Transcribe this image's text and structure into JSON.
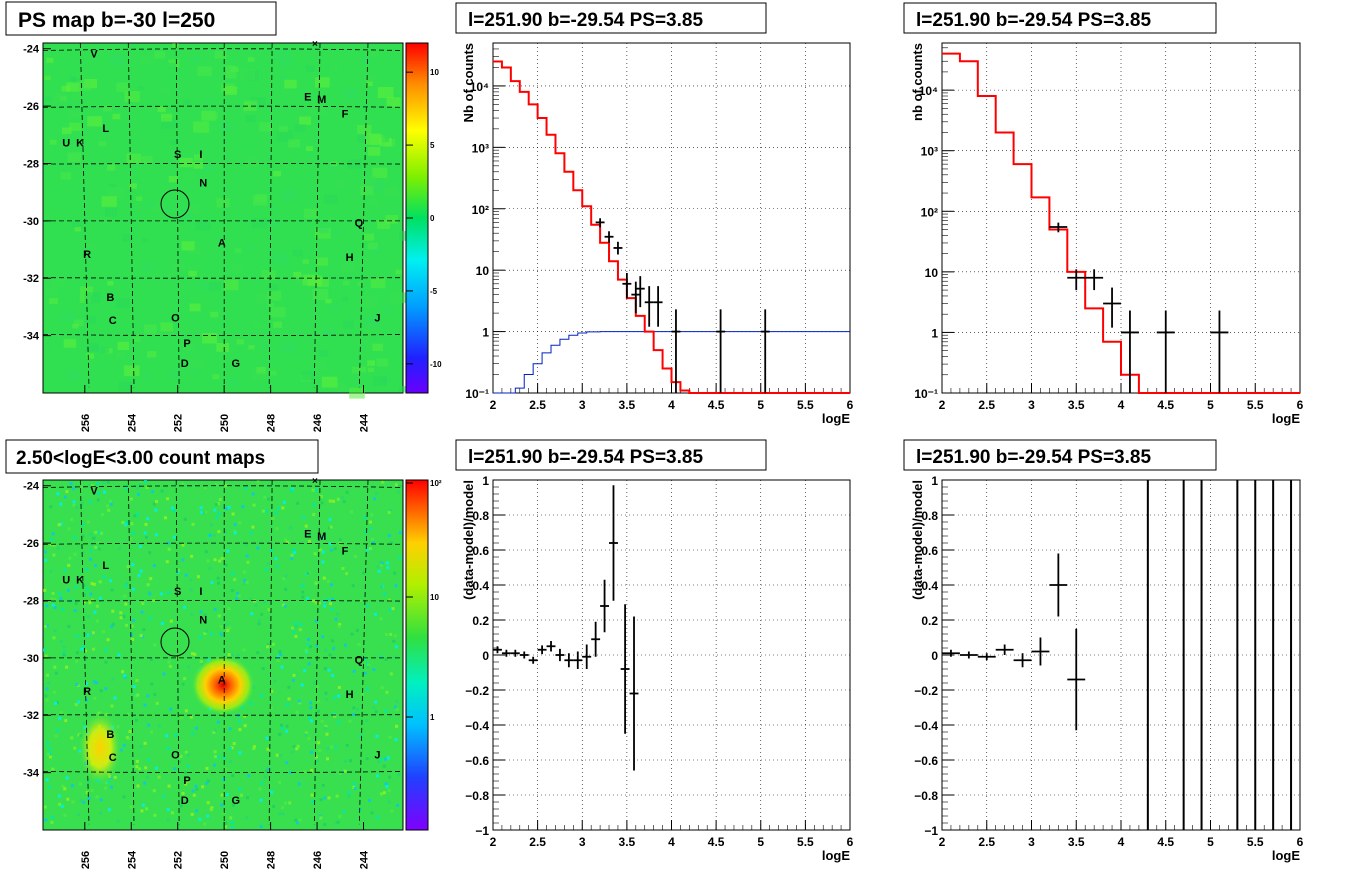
{
  "titles": {
    "psmap": "PS map b=-30 l=250",
    "countmap": "2.50<logE<3.00 count maps",
    "spec1": "l=251.90 b=-29.54 PS=3.85",
    "spec2": "l=251.90 b=-29.54 PS=3.85",
    "res1": "l=251.90 b=-29.54 PS=3.85",
    "res2": "l=251.90 b=-29.54 PS=3.85"
  },
  "colors": {
    "map_bg": "#30e050",
    "data": "#000000",
    "model": "#ff0000",
    "exposure": "#0020c0",
    "grid": "#000000"
  },
  "chart_data": [
    {
      "id": "psmap",
      "type": "heatmap",
      "title": "PS map b=-30 l=250",
      "x_ticks": [
        "256",
        "254",
        "252",
        "250",
        "248",
        "246",
        "244"
      ],
      "y_ticks": [
        "-24",
        "-26",
        "-28",
        "-30",
        "-32",
        "-34"
      ],
      "colorbar_ticks": [
        "10",
        "5",
        "0",
        "-5",
        "-10"
      ],
      "colorbar_range": [
        -12,
        12
      ],
      "sources": [
        {
          "name": "V",
          "l": 255.6,
          "b": -24.3
        },
        {
          "name": "E",
          "l": 246.4,
          "b": -25.8
        },
        {
          "name": "M",
          "l": 245.8,
          "b": -25.9
        },
        {
          "name": "F",
          "l": 244.8,
          "b": -26.4
        },
        {
          "name": "L",
          "l": 255.1,
          "b": -26.9
        },
        {
          "name": "U",
          "l": 256.8,
          "b": -27.4
        },
        {
          "name": "K",
          "l": 256.2,
          "b": -27.4
        },
        {
          "name": "S",
          "l": 252.0,
          "b": -27.8
        },
        {
          "name": "I",
          "l": 251.0,
          "b": -27.8
        },
        {
          "name": "N",
          "l": 250.9,
          "b": -28.8
        },
        {
          "name": "Q",
          "l": 244.2,
          "b": -30.2
        },
        {
          "name": "A",
          "l": 250.1,
          "b": -30.9
        },
        {
          "name": "R",
          "l": 255.9,
          "b": -31.3
        },
        {
          "name": "H",
          "l": 244.6,
          "b": -31.4
        },
        {
          "name": "B",
          "l": 254.9,
          "b": -32.8
        },
        {
          "name": "C",
          "l": 254.8,
          "b": -33.6
        },
        {
          "name": "O",
          "l": 252.1,
          "b": -33.5
        },
        {
          "name": "J",
          "l": 243.4,
          "b": -33.5
        },
        {
          "name": "P",
          "l": 251.6,
          "b": -34.4
        },
        {
          "name": "D",
          "l": 251.7,
          "b": -35.1
        },
        {
          "name": "G",
          "l": 249.5,
          "b": -35.1
        }
      ],
      "marker_circle": {
        "l": 251.9,
        "b": -29.54
      }
    },
    {
      "id": "countmap",
      "type": "heatmap",
      "title": "2.50<logE<3.00 count maps",
      "x_ticks": [
        "256",
        "254",
        "252",
        "250",
        "248",
        "246",
        "244"
      ],
      "y_ticks": [
        "-24",
        "-26",
        "-28",
        "-30",
        "-32",
        "-34"
      ],
      "colorbar_ticks": [
        "10²",
        "10",
        "1"
      ],
      "hotspots": [
        {
          "name": "A",
          "l": 250.1,
          "b": -30.9,
          "strength": 1.0
        },
        {
          "name": "B",
          "l": 254.9,
          "b": -33.0,
          "strength": 0.55
        }
      ]
    },
    {
      "id": "spec1",
      "type": "line",
      "title": "l=251.90 b=-29.54 PS=3.85",
      "xlabel": "logE",
      "ylabel": "Nb of counts",
      "xlim": [
        2,
        6
      ],
      "ylim": [
        0.1,
        50000
      ],
      "yscale": "log",
      "x_ticks": [
        "2",
        "2.5",
        "3",
        "3.5",
        "4",
        "4.5",
        "5",
        "5.5",
        "6"
      ],
      "y_ticks": [
        "10⁻¹",
        "1",
        "10",
        "10²",
        "10³",
        "10⁴"
      ],
      "model_steps": {
        "edges": [
          2.0,
          2.1,
          2.2,
          2.3,
          2.4,
          2.5,
          2.6,
          2.7,
          2.8,
          2.9,
          3.0,
          3.1,
          3.2,
          3.3,
          3.4,
          3.5,
          3.6,
          3.7,
          3.8,
          3.9,
          4.0,
          4.1,
          4.2,
          6.0
        ],
        "values": [
          25000,
          20000,
          12000,
          8000,
          5000,
          3000,
          1600,
          800,
          400,
          200,
          110,
          55,
          28,
          14,
          7,
          3.5,
          1.8,
          1.0,
          0.5,
          0.25,
          0.15,
          0.11,
          0.1
        ]
      },
      "data_points": [
        {
          "x": 3.2,
          "y": 60,
          "xerr": 0.05,
          "ylo": 50,
          "yhi": 70
        },
        {
          "x": 3.3,
          "y": 35,
          "xerr": 0.05,
          "ylo": 28,
          "yhi": 43
        },
        {
          "x": 3.4,
          "y": 23,
          "xerr": 0.05,
          "ylo": 18,
          "yhi": 29
        },
        {
          "x": 3.5,
          "y": 6,
          "xerr": 0.05,
          "ylo": 3.5,
          "yhi": 9
        },
        {
          "x": 3.6,
          "y": 4,
          "xerr": 0.05,
          "ylo": 2,
          "yhi": 6.5
        },
        {
          "x": 3.65,
          "y": 5,
          "xerr": 0.05,
          "ylo": 2.5,
          "yhi": 8
        },
        {
          "x": 3.75,
          "y": 3,
          "xerr": 0.05,
          "ylo": 1.2,
          "yhi": 5.5
        },
        {
          "x": 3.85,
          "y": 3,
          "xerr": 0.05,
          "ylo": 1.2,
          "yhi": 5.5
        },
        {
          "x": 4.05,
          "y": 1,
          "xerr": 0.05,
          "ylo": 0.1,
          "yhi": 2.3
        },
        {
          "x": 4.55,
          "y": 1,
          "xerr": 0.05,
          "ylo": 0.1,
          "yhi": 2.3
        },
        {
          "x": 5.05,
          "y": 1,
          "xerr": 0.05,
          "ylo": 0.1,
          "yhi": 2.3
        }
      ],
      "exposure_curve": {
        "x": [
          2.0,
          2.15,
          2.25,
          2.35,
          2.45,
          2.55,
          2.65,
          2.75,
          2.85,
          2.95,
          3.05,
          3.2,
          3.5,
          6.0
        ],
        "y": [
          0.07,
          0.09,
          0.12,
          0.2,
          0.3,
          0.45,
          0.6,
          0.75,
          0.87,
          0.95,
          0.99,
          1.0,
          1.0,
          1.0
        ]
      }
    },
    {
      "id": "spec2",
      "type": "line",
      "title": "l=251.90 b=-29.54 PS=3.85",
      "xlabel": "logE",
      "ylabel": "nb of counts",
      "xlim": [
        2,
        6
      ],
      "ylim": [
        0.1,
        60000
      ],
      "yscale": "log",
      "x_ticks": [
        "2",
        "2.5",
        "3",
        "3.5",
        "4",
        "4.5",
        "5",
        "5.5",
        "6"
      ],
      "y_ticks": [
        "10⁻¹",
        "1",
        "10",
        "10²",
        "10³",
        "10⁴"
      ],
      "model_steps": {
        "edges": [
          2.0,
          2.2,
          2.4,
          2.6,
          2.8,
          3.0,
          3.2,
          3.4,
          3.6,
          3.8,
          4.0,
          4.2,
          6.0
        ],
        "values": [
          40000,
          30000,
          8000,
          2000,
          600,
          170,
          50,
          10,
          2.5,
          0.7,
          0.2,
          0.1
        ]
      },
      "data_points": [
        {
          "x": 3.3,
          "y": 55,
          "xerr": 0.1,
          "ylo": 45,
          "yhi": 65
        },
        {
          "x": 3.5,
          "y": 8,
          "xerr": 0.1,
          "ylo": 5,
          "yhi": 11
        },
        {
          "x": 3.7,
          "y": 8,
          "xerr": 0.1,
          "ylo": 5,
          "yhi": 11
        },
        {
          "x": 3.9,
          "y": 3,
          "xerr": 0.1,
          "ylo": 1.2,
          "yhi": 5.5
        },
        {
          "x": 4.1,
          "y": 1,
          "xerr": 0.1,
          "ylo": 0.1,
          "yhi": 2.3
        },
        {
          "x": 4.5,
          "y": 1,
          "xerr": 0.1,
          "ylo": 0.1,
          "yhi": 2.3
        },
        {
          "x": 5.1,
          "y": 1,
          "xerr": 0.1,
          "ylo": 0.1,
          "yhi": 2.3
        }
      ]
    },
    {
      "id": "res1",
      "type": "scatter",
      "title": "l=251.90 b=-29.54 PS=3.85",
      "xlabel": "logE",
      "ylabel": "(data-model)/model",
      "xlim": [
        2,
        6
      ],
      "ylim": [
        -1,
        1
      ],
      "x_ticks": [
        "2",
        "2.5",
        "3",
        "3.5",
        "4",
        "4.5",
        "5",
        "5.5",
        "6"
      ],
      "y_ticks": [
        "1",
        "0.8",
        "0.6",
        "0.4",
        "0.2",
        "0",
        "−0.2",
        "−0.4",
        "−0.6",
        "−0.8",
        "−1"
      ],
      "data_points": [
        {
          "x": 2.05,
          "y": 0.03,
          "xerr": 0.05,
          "err": 0.02
        },
        {
          "x": 2.15,
          "y": 0.01,
          "xerr": 0.05,
          "err": 0.02
        },
        {
          "x": 2.25,
          "y": 0.01,
          "xerr": 0.05,
          "err": 0.02
        },
        {
          "x": 2.35,
          "y": 0.0,
          "xerr": 0.05,
          "err": 0.02
        },
        {
          "x": 2.45,
          "y": -0.03,
          "xerr": 0.05,
          "err": 0.02
        },
        {
          "x": 2.55,
          "y": 0.03,
          "xerr": 0.05,
          "err": 0.025
        },
        {
          "x": 2.65,
          "y": 0.05,
          "xerr": 0.05,
          "err": 0.03
        },
        {
          "x": 2.75,
          "y": 0.0,
          "xerr": 0.05,
          "err": 0.035
        },
        {
          "x": 2.85,
          "y": -0.03,
          "xerr": 0.05,
          "err": 0.04
        },
        {
          "x": 2.95,
          "y": -0.03,
          "xerr": 0.05,
          "err": 0.05
        },
        {
          "x": 3.05,
          "y": -0.01,
          "xerr": 0.05,
          "err": 0.07
        },
        {
          "x": 3.15,
          "y": 0.09,
          "xerr": 0.05,
          "err": 0.1
        },
        {
          "x": 3.25,
          "y": 0.28,
          "xerr": 0.05,
          "err": 0.15
        },
        {
          "x": 3.35,
          "y": 0.64,
          "xerr": 0.05,
          "err": 0.33
        },
        {
          "x": 3.48,
          "y": -0.08,
          "xerr": 0.05,
          "err": 0.37
        },
        {
          "x": 3.58,
          "y": -0.22,
          "xerr": 0.05,
          "err": 0.44
        }
      ]
    },
    {
      "id": "res2",
      "type": "scatter",
      "title": "l=251.90 b=-29.54 PS=3.85",
      "xlabel": "logE",
      "ylabel": "(data-model)/model",
      "xlim": [
        2,
        6
      ],
      "ylim": [
        -1,
        1
      ],
      "x_ticks": [
        "2",
        "2.5",
        "3",
        "3.5",
        "4",
        "4.5",
        "5",
        "5.5",
        "6"
      ],
      "y_ticks": [
        "1",
        "0.8",
        "0.6",
        "0.4",
        "0.2",
        "0",
        "−0.2",
        "−0.4",
        "−0.6",
        "−0.8",
        "−1"
      ],
      "data_points": [
        {
          "x": 2.1,
          "y": 0.01,
          "xerr": 0.1,
          "err": 0.02
        },
        {
          "x": 2.3,
          "y": 0.0,
          "xerr": 0.1,
          "err": 0.02
        },
        {
          "x": 2.5,
          "y": -0.01,
          "xerr": 0.1,
          "err": 0.02
        },
        {
          "x": 2.7,
          "y": 0.03,
          "xerr": 0.1,
          "err": 0.03
        },
        {
          "x": 2.9,
          "y": -0.03,
          "xerr": 0.1,
          "err": 0.04
        },
        {
          "x": 3.1,
          "y": 0.02,
          "xerr": 0.1,
          "err": 0.08
        },
        {
          "x": 3.3,
          "y": 0.4,
          "xerr": 0.1,
          "err": 0.18
        },
        {
          "x": 3.5,
          "y": -0.14,
          "xerr": 0.1,
          "err": 0.29
        }
      ],
      "vertical_lines_x": [
        4.3,
        4.7,
        4.9,
        5.3,
        5.5,
        5.7,
        5.9
      ]
    }
  ]
}
